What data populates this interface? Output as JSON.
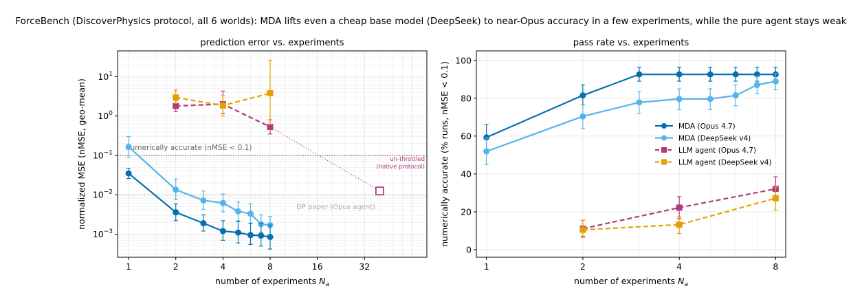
{
  "suptitle": "ForceBench (DiscoverPhysics protocol, all 6 worlds): MDA lifts even a cheap base model (DeepSeek) to near-Opus accuracy in a few experiments, while the pure agent stays weak",
  "colors": {
    "mda_opus": "#0570b0",
    "mda_deepseek": "#56b4e9",
    "llm_opus": "#b03a7e",
    "llm_deepseek": "#e69f00",
    "threshold": "#555555",
    "paper": "#bbbbbb"
  },
  "chart_data": [
    {
      "type": "line",
      "title": "prediction error vs. experiments",
      "xlabel": "number of experiments N_a",
      "xlabel_main": "number of experiments ",
      "xlabel_var": "N",
      "xlabel_sub": "a",
      "ylabel": "normalized MSE (nMSE, geo-mean)",
      "xscale": "log2",
      "yscale": "log10",
      "xlim": [
        0.85,
        80
      ],
      "ylim": [
        0.00026,
        45
      ],
      "xticks": [
        1,
        2,
        4,
        8,
        16,
        32
      ],
      "xtick_labels": [
        "1",
        "2",
        "4",
        "8",
        "16",
        "32"
      ],
      "yticks": [
        0.001,
        0.01,
        0.1,
        1,
        10
      ],
      "ytick_labels": [
        {
          "base": "10",
          "exp": "−3"
        },
        {
          "base": "10",
          "exp": "−2"
        },
        {
          "base": "10",
          "exp": "−1"
        },
        {
          "base": "10",
          "exp": "0"
        },
        {
          "base": "10",
          "exp": "1"
        }
      ],
      "grid": true,
      "series": [
        {
          "key": "mda_deepseek",
          "style": "solid",
          "marker": "circle",
          "x": [
            1,
            2,
            3,
            4,
            5,
            6,
            7,
            8
          ],
          "y": [
            0.165,
            0.0135,
            0.0072,
            0.0062,
            0.0038,
            0.0033,
            0.0018,
            0.0017
          ],
          "err_low": [
            0.09,
            0.0075,
            0.0043,
            0.0037,
            0.0022,
            0.0019,
            0.0011,
            0.0009
          ],
          "err_high": [
            0.3,
            0.025,
            0.0125,
            0.0105,
            0.0066,
            0.0059,
            0.0031,
            0.0028
          ]
        },
        {
          "key": "mda_opus",
          "style": "solid",
          "marker": "circle",
          "x": [
            1,
            2,
            3,
            4,
            5,
            6,
            7,
            8
          ],
          "y": [
            0.035,
            0.0036,
            0.0019,
            0.0012,
            0.0011,
            0.00095,
            0.00092,
            0.00085
          ],
          "err_low": [
            0.026,
            0.0022,
            0.0012,
            0.0007,
            0.0006,
            0.00055,
            0.0005,
            0.00042
          ],
          "err_high": [
            0.047,
            0.0059,
            0.0031,
            0.0022,
            0.0021,
            0.0019,
            0.0019,
            0.0017
          ]
        },
        {
          "key": "llm_opus",
          "style": "dashed",
          "marker": "square",
          "x": [
            2,
            4,
            8
          ],
          "y": [
            1.8,
            2.0,
            0.53
          ],
          "err_low": [
            1.3,
            1.15,
            0.35
          ],
          "err_high": [
            2.5,
            4.3,
            0.8
          ]
        },
        {
          "key": "llm_deepseek",
          "style": "dashed",
          "marker": "square",
          "x": [
            2,
            4,
            8
          ],
          "y": [
            2.95,
            1.85,
            3.8
          ],
          "err_low": [
            2.1,
            1.0,
            0.6
          ],
          "err_high": [
            4.6,
            3.3,
            26
          ]
        }
      ],
      "unthrottled_point": {
        "x": 40,
        "y": 0.0125,
        "from_x": 8,
        "from_y": 0.53
      },
      "threshold": {
        "y": 0.1,
        "label": "numerically accurate (nMSE < 0.1)"
      },
      "paper_ref": {
        "y": 0.01,
        "label": "DP paper (Opus agent)"
      },
      "unthrottled_label": [
        "un-throttled",
        "(native protocol)"
      ]
    },
    {
      "type": "line",
      "title": "pass rate vs. experiments",
      "xlabel": "number of experiments N_a",
      "xlabel_main": "number of experiments ",
      "xlabel_var": "N",
      "xlabel_sub": "a",
      "ylabel": "numerically accurate (% runs, nMSE  < 0.1)",
      "xscale": "log2",
      "yscale": "linear",
      "xlim": [
        0.93,
        8.6
      ],
      "ylim": [
        -4,
        105
      ],
      "xticks": [
        1,
        2,
        4,
        8
      ],
      "xtick_labels": [
        "1",
        "2",
        "4",
        "8"
      ],
      "yticks": [
        0,
        20,
        40,
        60,
        80,
        100
      ],
      "ytick_labels": [
        "0",
        "20",
        "40",
        "60",
        "80",
        "100"
      ],
      "grid": true,
      "legend_position": "center-right",
      "series": [
        {
          "key": "mda_opus",
          "name": "MDA (Opus 4.7)",
          "style": "solid",
          "marker": "circle",
          "x": [
            1,
            2,
            3,
            4,
            5,
            6,
            7,
            8
          ],
          "y": [
            59.3,
            81.5,
            92.6,
            92.6,
            92.6,
            92.6,
            92.6,
            92.6
          ],
          "err_low": [
            52.5,
            76.5,
            89,
            89,
            89,
            89,
            89,
            89
          ],
          "err_high": [
            66,
            87,
            96.3,
            96.3,
            96.3,
            96.3,
            96.3,
            96.3
          ]
        },
        {
          "key": "mda_deepseek",
          "name": "MDA (DeepSeek v4)",
          "style": "solid",
          "marker": "circle",
          "x": [
            1,
            2,
            3,
            4,
            5,
            6,
            7,
            8
          ],
          "y": [
            51.9,
            70.4,
            77.8,
            79.6,
            79.6,
            81.5,
            87.0,
            88.9
          ],
          "err_low": [
            45,
            64,
            72,
            74,
            74,
            76,
            82.5,
            84.5
          ],
          "err_high": [
            59,
            76.5,
            83.5,
            85,
            85,
            87,
            91.5,
            93
          ]
        },
        {
          "key": "llm_opus",
          "name": "LLM agent (Opus 4.7)",
          "style": "dashed",
          "marker": "square",
          "x": [
            2,
            4,
            8
          ],
          "y": [
            11.1,
            22.2,
            32.1
          ],
          "err_low": [
            7,
            16.5,
            26
          ],
          "err_high": [
            15.5,
            28,
            38.5
          ]
        },
        {
          "key": "llm_deepseek",
          "name": "LLM agent (DeepSeek v4)",
          "style": "dashed",
          "marker": "square",
          "x": [
            2,
            4,
            8
          ],
          "y": [
            10.5,
            13.2,
            27.2
          ],
          "err_low": [
            6.5,
            8.5,
            21
          ],
          "err_high": [
            15.5,
            17.5,
            33
          ]
        }
      ]
    }
  ]
}
